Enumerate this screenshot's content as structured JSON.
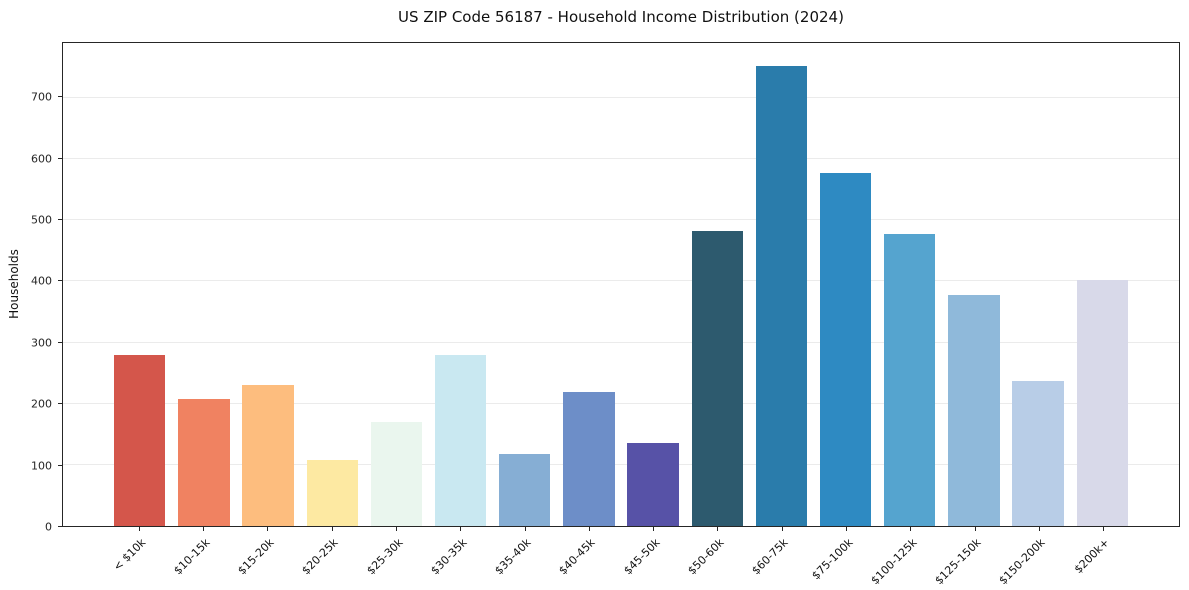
{
  "title": "US ZIP Code 56187 - Household Income Distribution (2024)",
  "chart_data": {
    "type": "bar",
    "title": "US ZIP Code 56187 - Household Income Distribution (2024)",
    "xlabel": "",
    "ylabel": "Households",
    "ylim": [
      0,
      790
    ],
    "yticks": [
      0,
      100,
      200,
      300,
      400,
      500,
      600,
      700
    ],
    "grid": true,
    "legend_position": "none",
    "categories": [
      "< $10k",
      "$10-15k",
      "$15-20k",
      "$20-25k",
      "$25-30k",
      "$30-35k",
      "$35-40k",
      "$40-45k",
      "$45-50k",
      "$50-60k",
      "$60-75k",
      "$75-100k",
      "$100-125k",
      "$125-150k",
      "$150-200k",
      "$200k+"
    ],
    "values": [
      280,
      207,
      230,
      108,
      170,
      280,
      117,
      220,
      135,
      483,
      752,
      578,
      477,
      378,
      237,
      402
    ],
    "bar_colors": [
      "#d4564b",
      "#f08261",
      "#fdbd7e",
      "#fde9a2",
      "#eaf6ee",
      "#c9e8f1",
      "#86aed4",
      "#6d8ec8",
      "#5752a7",
      "#2d5a6e",
      "#2a7cab",
      "#2e8ac2",
      "#55a4cf",
      "#8fb9da",
      "#b8cde7",
      "#d8d9e9"
    ]
  }
}
